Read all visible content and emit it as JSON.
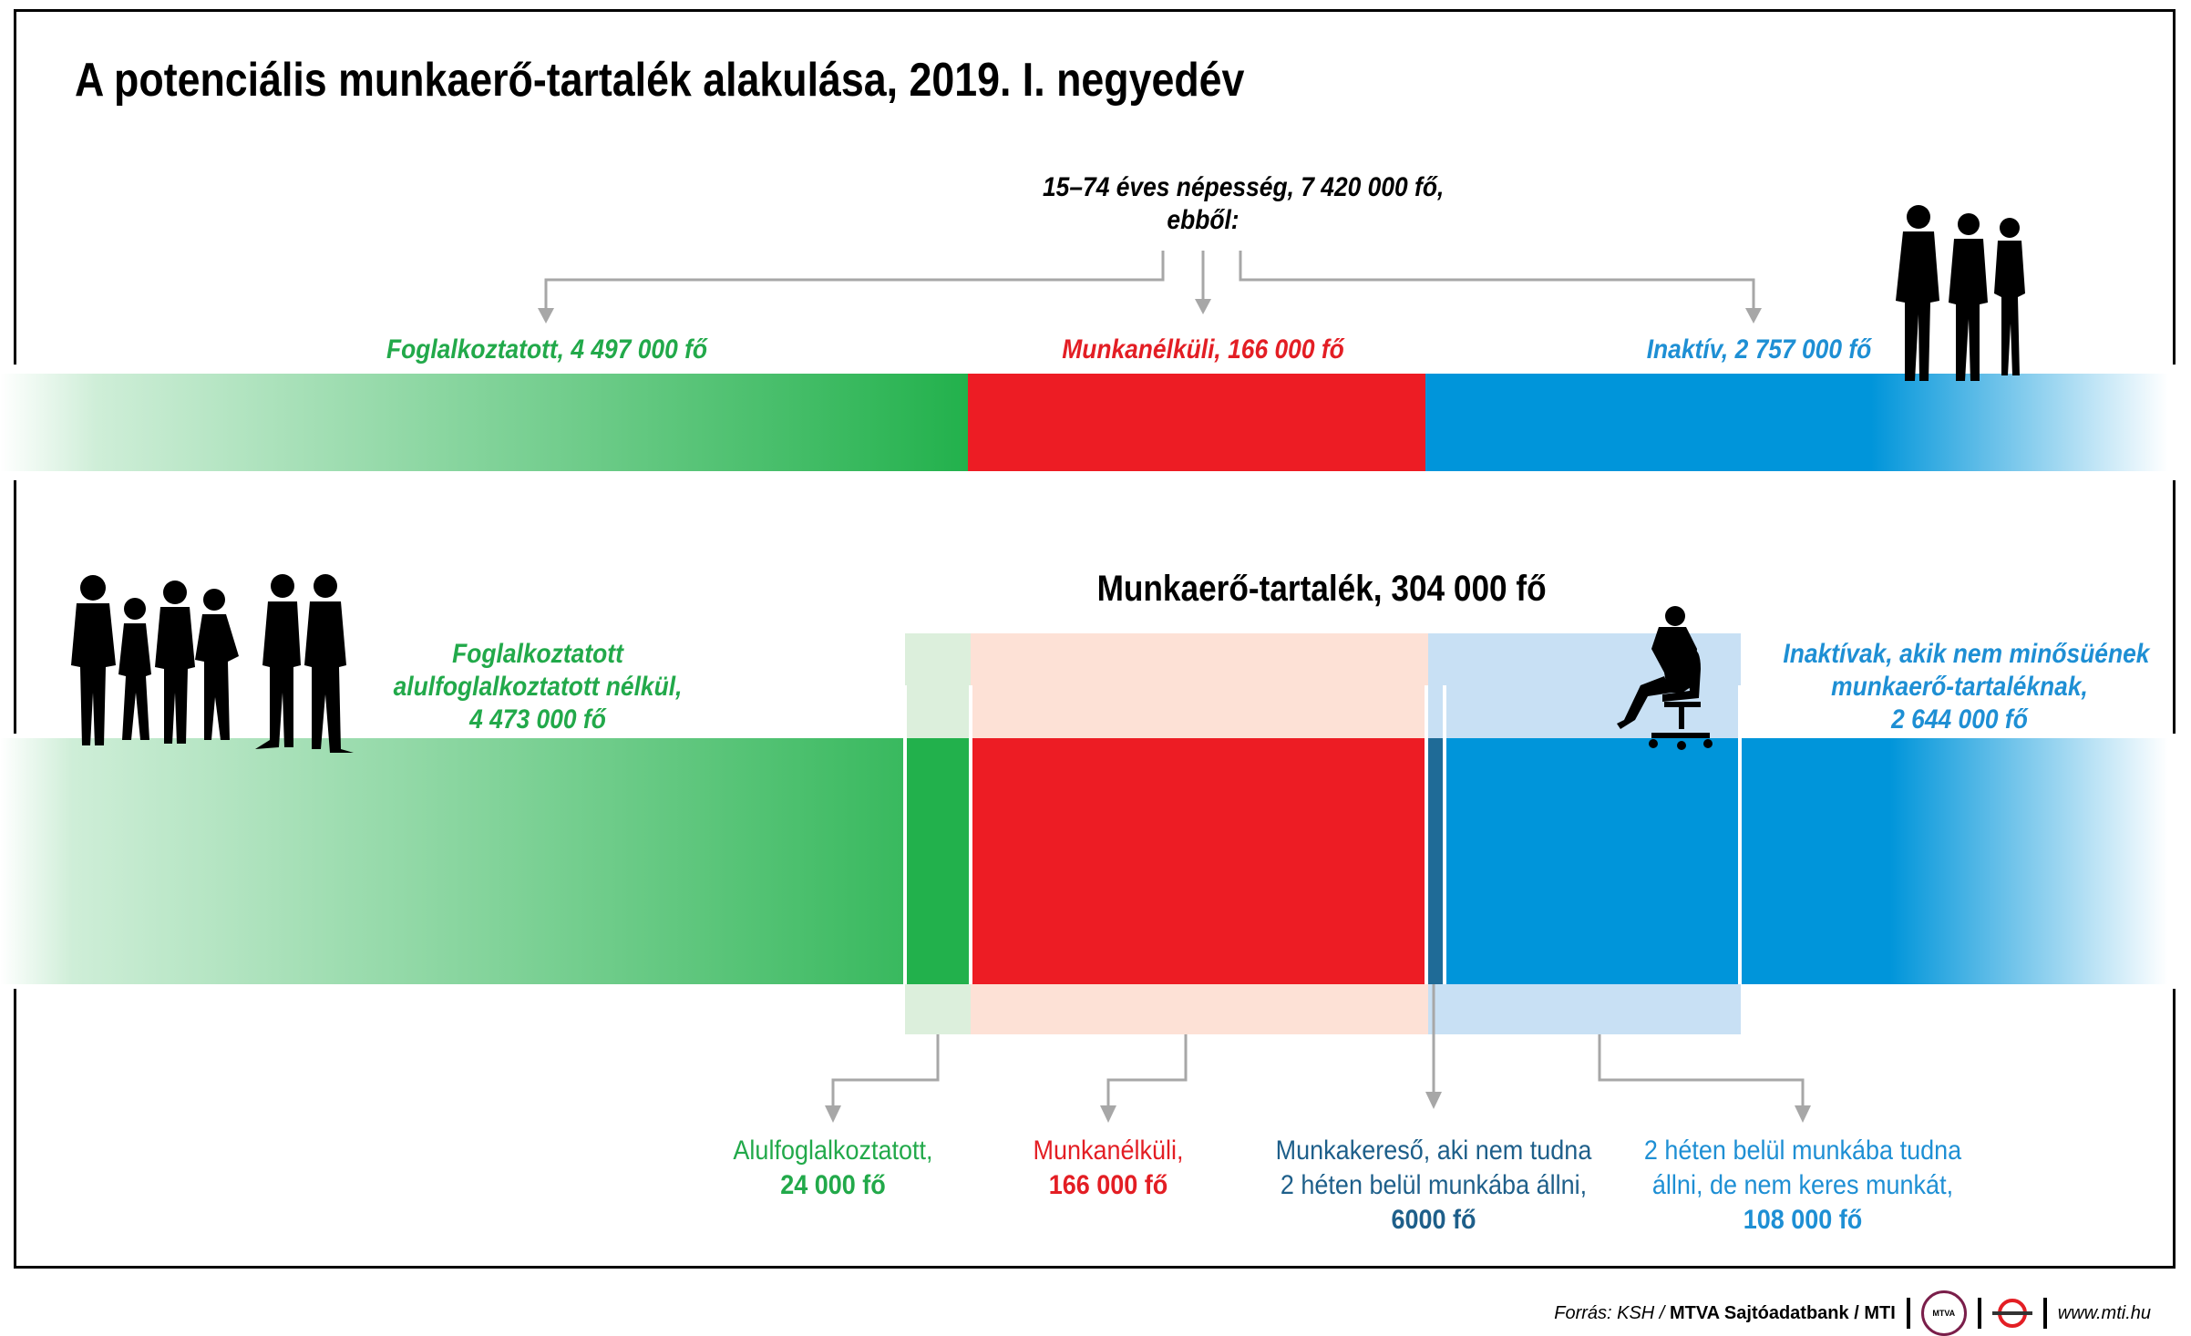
{
  "title": "A potenciális munkaerő-tartalék alakulása, 2019. I. negyedév",
  "population": {
    "line1": "15–74 éves népesség, 7 420 000 fő,",
    "line2": "ebből:"
  },
  "top_row": {
    "employed": "Foglalkoztatott, 4 497 000 fő",
    "unemployed": "Munkanélküli, 166 000 fő",
    "inactive": "Inaktív, 2 757 000 fő"
  },
  "reserve_title": "Munkaerő-tartalék, 304 000 fő",
  "bottom_row": {
    "employed_line1": "Foglalkoztatott",
    "employed_line2": "alulfoglalkoztatott nélkül,",
    "employed_line3": "4 473 000 fő",
    "inactive_line1": "Inaktívak, akik nem minősüének",
    "inactive_line2": "munkaerő-tartaléknak,",
    "inactive_line3": "2 644 000 fő"
  },
  "categories": {
    "under": {
      "line1": "Alulfoglalkoztatott,",
      "value": "24 000 fő"
    },
    "unemp": {
      "line1": "Munkanélküli,",
      "value": "166 000 fő"
    },
    "seeker": {
      "line1": "Munkakereső, aki nem tudna",
      "line2": "2 héten belül munkába állni,",
      "value": "6000 fő"
    },
    "available": {
      "line1": "2 héten belül munkába tudna",
      "line2": "állni, de nem keres munkát,",
      "value": "108 000 fő"
    }
  },
  "footer": {
    "source_prefix": "Forrás: KSH /",
    "bank": "MTVA Sajtóadatbank",
    "mti": "/ MTI",
    "logo1": "MTVA",
    "url": "www.mti.hu"
  },
  "colors": {
    "green": "#22b14c",
    "red": "#ed1c24",
    "blue": "#0095da",
    "light_green": "#dcefdc",
    "light_red": "#fde1d6",
    "light_blue": "#c8e0f4",
    "dark_blue": "#1f6b97"
  },
  "icons": [
    "three-people-silhouette-icon",
    "group-silhouette-icon",
    "seated-woman-silhouette-icon",
    "mtva-logo-icon",
    "mti-logo-icon"
  ]
}
